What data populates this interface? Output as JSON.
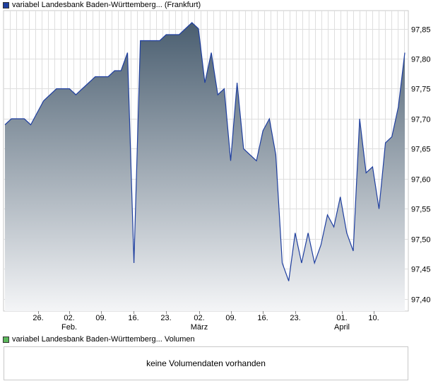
{
  "legend": {
    "price_label": "variabel Landesbank Baden-Württemberg... (Frankfurt)",
    "price_color": "#1f3f9f",
    "volume_label": "variabel Landesbank Baden-Württemberg... Volumen",
    "volume_color": "#5cb85c"
  },
  "volume_panel": {
    "message": "keine Volumendaten vorhanden"
  },
  "chart_data": {
    "type": "area",
    "ylim": [
      97.38,
      97.88
    ],
    "y_ticks": [
      "97,85",
      "97,80",
      "97,75",
      "97,70",
      "97,65",
      "97,60",
      "97,55",
      "97,50",
      "97,45",
      "97,40"
    ],
    "x_ticks": [
      {
        "day": "26.",
        "month": ""
      },
      {
        "day": "02.",
        "month": "Feb."
      },
      {
        "day": "09.",
        "month": ""
      },
      {
        "day": "16.",
        "month": ""
      },
      {
        "day": "23.",
        "month": ""
      },
      {
        "day": "02.",
        "month": "März"
      },
      {
        "day": "09.",
        "month": ""
      },
      {
        "day": "16.",
        "month": ""
      },
      {
        "day": "23.",
        "month": ""
      },
      {
        "day": "01.",
        "month": "April"
      },
      {
        "day": "10.",
        "month": ""
      }
    ],
    "grid": true,
    "line_color": "#1f3f9f",
    "fill_top": "#4a5e70",
    "fill_bottom": "#f4f5f7",
    "values": [
      97.69,
      97.7,
      97.7,
      97.7,
      97.69,
      97.71,
      97.73,
      97.74,
      97.75,
      97.75,
      97.75,
      97.74,
      97.75,
      97.76,
      97.77,
      97.77,
      97.77,
      97.78,
      97.78,
      97.81,
      97.46,
      97.83,
      97.83,
      97.83,
      97.83,
      97.84,
      97.84,
      97.84,
      97.85,
      97.86,
      97.85,
      97.76,
      97.81,
      97.74,
      97.75,
      97.63,
      97.76,
      97.65,
      97.64,
      97.63,
      97.68,
      97.7,
      97.64,
      97.46,
      97.43,
      97.51,
      97.46,
      97.51,
      97.46,
      97.49,
      97.54,
      97.52,
      97.57,
      97.51,
      97.48,
      97.7,
      97.61,
      97.62,
      97.55,
      97.66,
      97.67,
      97.72,
      97.81
    ]
  }
}
